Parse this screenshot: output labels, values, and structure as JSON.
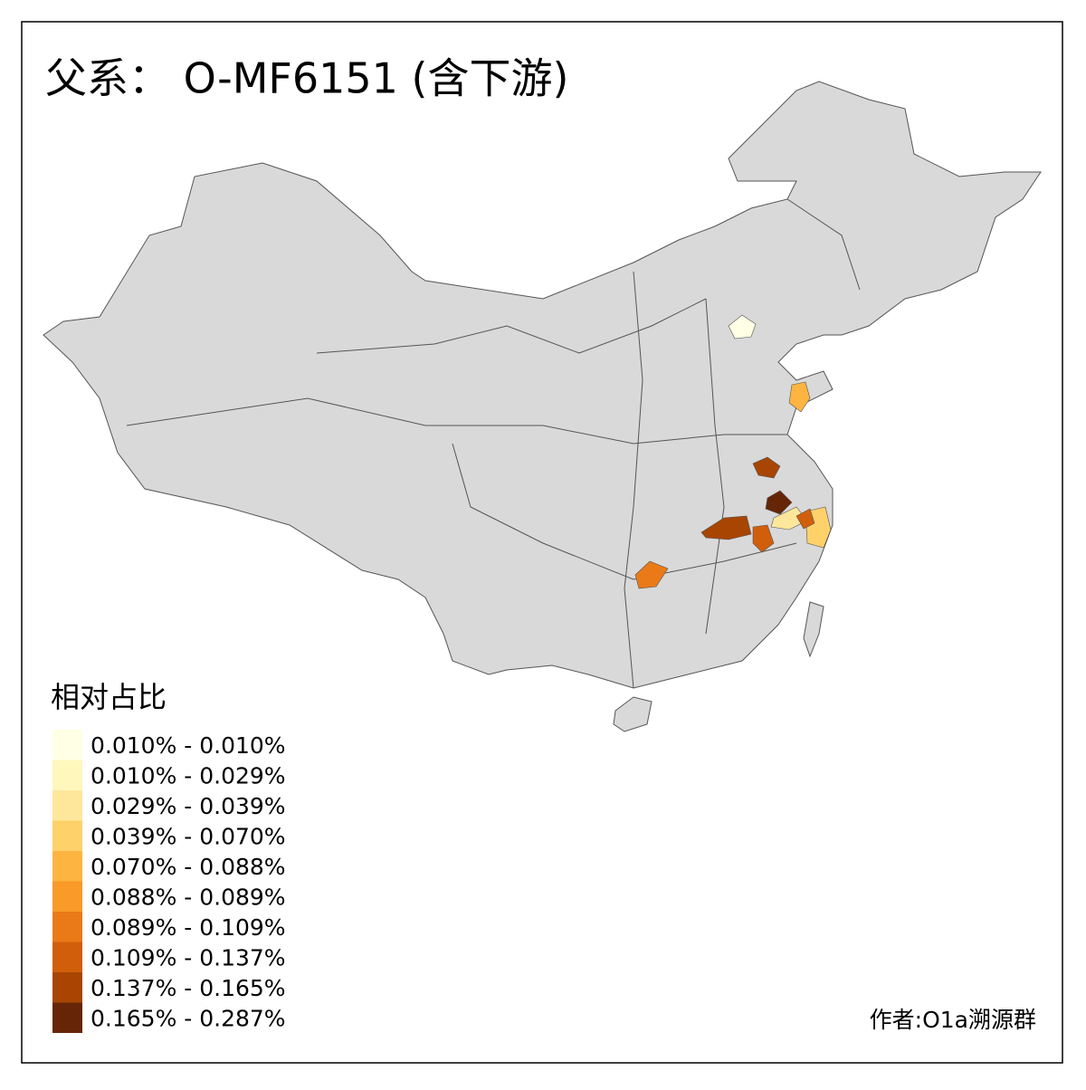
{
  "title": "父系： O-MF6151 (含下游)",
  "legend": {
    "title": "相对占比",
    "items": [
      {
        "label": "0.010% - 0.010%",
        "color": "#ffffe5"
      },
      {
        "label": "0.010% - 0.029%",
        "color": "#fff7bc"
      },
      {
        "label": "0.029% - 0.039%",
        "color": "#fee79b"
      },
      {
        "label": "0.039% - 0.070%",
        "color": "#fed16a"
      },
      {
        "label": "0.070% - 0.088%",
        "color": "#feb441"
      },
      {
        "label": "0.088% - 0.089%",
        "color": "#f99a29"
      },
      {
        "label": "0.089% - 0.109%",
        "color": "#e97a17"
      },
      {
        "label": "0.109% - 0.137%",
        "color": "#d15e0b"
      },
      {
        "label": "0.137% - 0.165%",
        "color": "#a84503"
      },
      {
        "label": "0.165% - 0.287%",
        "color": "#662506"
      }
    ]
  },
  "credit": "作者:O1a溯源群"
}
